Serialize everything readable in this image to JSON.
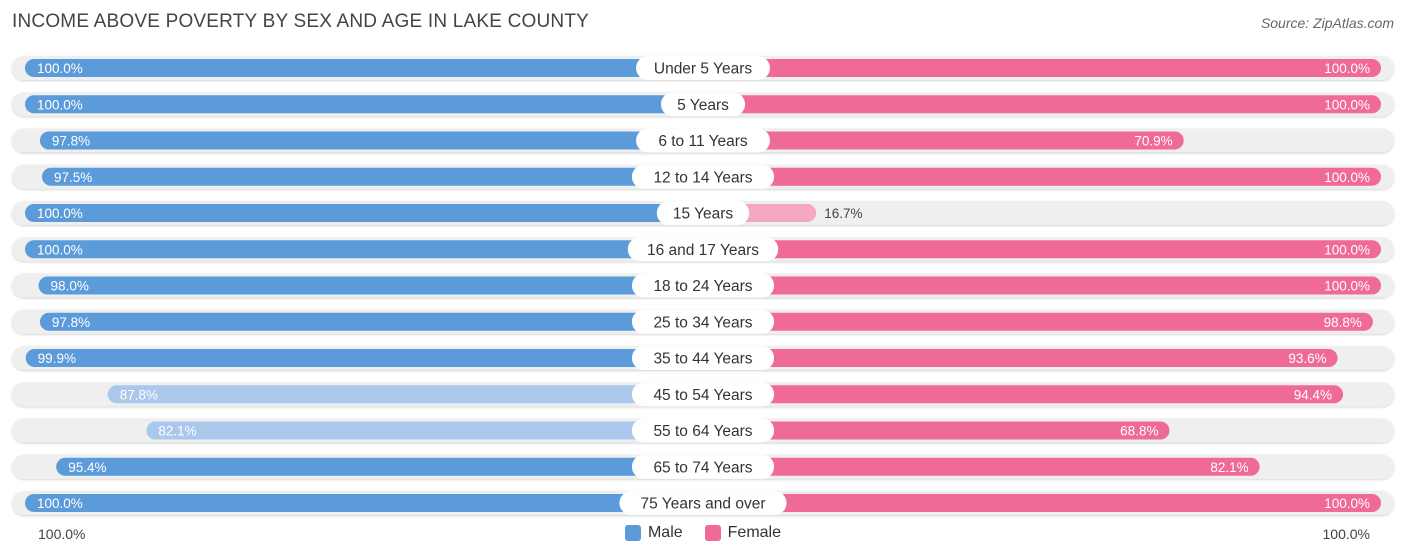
{
  "title": "INCOME ABOVE POVERTY BY SEX AND AGE IN LAKE COUNTY",
  "source": "Source: ZipAtlas.com",
  "footer": {
    "left": "100.0%",
    "right": "100.0%"
  },
  "legend": [
    {
      "label": "Male",
      "color": "#5b9bd9"
    },
    {
      "label": "Female",
      "color": "#f06a97"
    }
  ],
  "chart_data": {
    "type": "bar",
    "title": "INCOME ABOVE POVERTY BY SEX AND AGE IN LAKE COUNTY",
    "orientation": "horizontal-diverging",
    "categories": [
      "Under 5 Years",
      "5 Years",
      "6 to 11 Years",
      "12 to 14 Years",
      "15 Years",
      "16 and 17 Years",
      "18 to 24 Years",
      "25 to 34 Years",
      "35 to 44 Years",
      "45 to 54 Years",
      "55 to 64 Years",
      "65 to 74 Years",
      "75 Years and over"
    ],
    "series": [
      {
        "name": "Male",
        "values": [
          100.0,
          100.0,
          97.8,
          97.5,
          100.0,
          100.0,
          98.0,
          97.8,
          99.9,
          87.8,
          82.1,
          95.4,
          100.0
        ],
        "labels": [
          "100.0%",
          "100.0%",
          "97.8%",
          "97.5%",
          "100.0%",
          "100.0%",
          "98.0%",
          "97.8%",
          "99.9%",
          "87.8%",
          "82.1%",
          "95.4%",
          "100.0%"
        ]
      },
      {
        "name": "Female",
        "values": [
          100.0,
          100.0,
          70.9,
          100.0,
          16.7,
          100.0,
          100.0,
          98.8,
          93.6,
          94.4,
          68.8,
          82.1,
          100.0
        ],
        "labels": [
          "100.0%",
          "100.0%",
          "70.9%",
          "100.0%",
          "16.7%",
          "100.0%",
          "100.0%",
          "98.8%",
          "93.6%",
          "94.4%",
          "68.8%",
          "82.1%",
          "100.0%"
        ]
      }
    ],
    "xlim": [
      0,
      100
    ],
    "colors": {
      "male": "#5b9bd9",
      "male_light": "#a9c8ec",
      "female": "#f06a97",
      "female_light": "#f6a8c2",
      "track": "#efefef"
    }
  }
}
